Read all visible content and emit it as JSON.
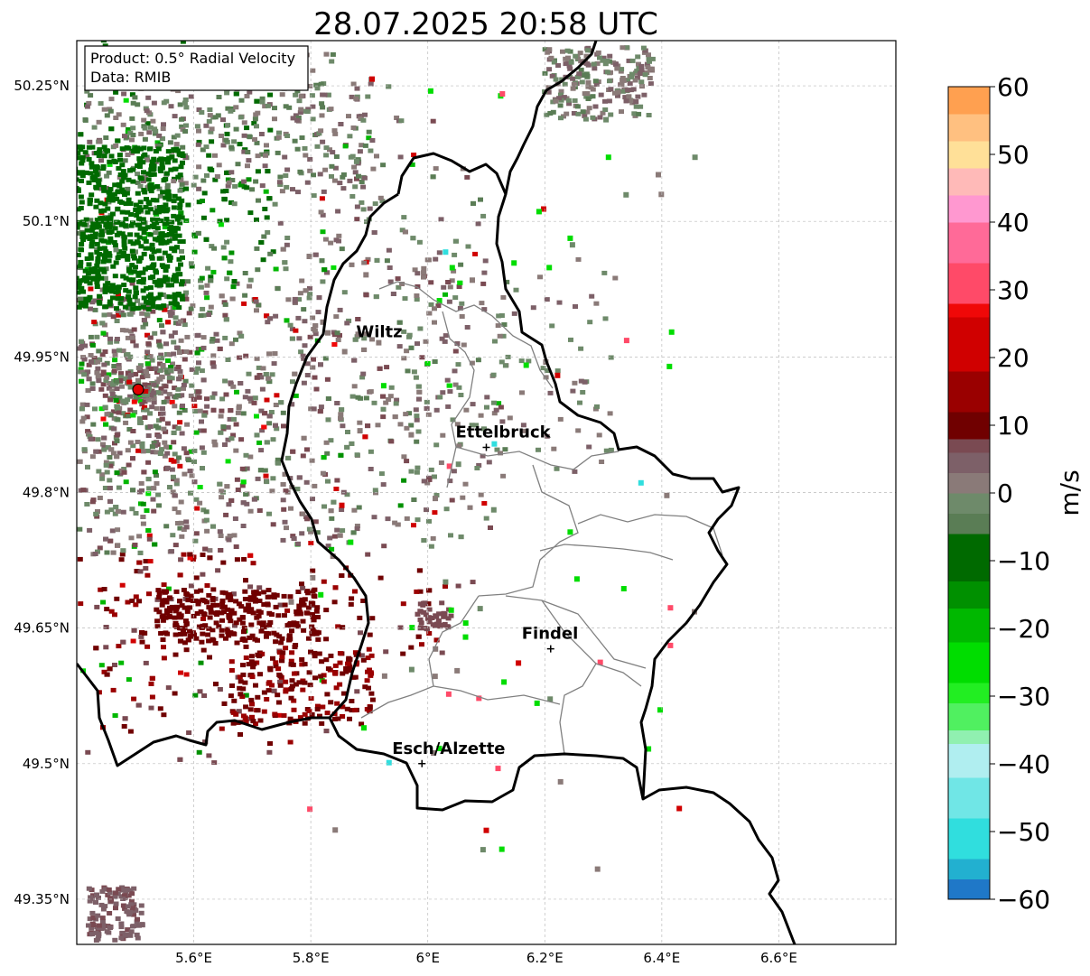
{
  "title": "28.07.2025 20:58 UTC",
  "info": {
    "product": "Product: 0.5° Radial Velocity",
    "data": "Data: RMIB"
  },
  "map_extent": {
    "lon": [
      5.4,
      6.8
    ],
    "lat": [
      49.3,
      50.3
    ]
  },
  "gridlines": true,
  "x_ticks": [
    {
      "value": 5.6,
      "label": "5.6°E"
    },
    {
      "value": 5.8,
      "label": "5.8°E"
    },
    {
      "value": 6.0,
      "label": "6°E"
    },
    {
      "value": 6.2,
      "label": "6.2°E"
    },
    {
      "value": 6.4,
      "label": "6.4°E"
    },
    {
      "value": 6.6,
      "label": "6.6°E"
    }
  ],
  "y_ticks": [
    {
      "value": 49.35,
      "label": "49.35°N"
    },
    {
      "value": 49.5,
      "label": "49.5°N"
    },
    {
      "value": 49.65,
      "label": "49.65°N"
    },
    {
      "value": 49.8,
      "label": "49.8°N"
    },
    {
      "value": 49.95,
      "label": "49.95°N"
    },
    {
      "value": 50.1,
      "label": "50.1°N"
    },
    {
      "value": 50.25,
      "label": "50.25°N"
    }
  ],
  "radar_site": {
    "lon": 5.505,
    "lat": 49.914,
    "color": "#e00000"
  },
  "cities": [
    {
      "name": "Wiltz",
      "lon": 5.93,
      "lat": 49.966,
      "marker": false
    },
    {
      "name": "Ettelbruck",
      "lon": 6.1,
      "lat": 49.85,
      "marker": true
    },
    {
      "name": "Findel",
      "lon": 6.21,
      "lat": 49.627,
      "marker": true
    },
    {
      "name": "Esch/Alzette",
      "lon": 5.99,
      "lat": 49.5,
      "marker": true
    }
  ],
  "colorbar": {
    "label": "m/s",
    "min": -60,
    "max": 60,
    "ticks": [
      {
        "value": 60,
        "label": "60"
      },
      {
        "value": 50,
        "label": "50"
      },
      {
        "value": 40,
        "label": "40"
      },
      {
        "value": 30,
        "label": "30"
      },
      {
        "value": 20,
        "label": "20"
      },
      {
        "value": 10,
        "label": "10"
      },
      {
        "value": 0,
        "label": "0"
      },
      {
        "value": -10,
        "label": "−10"
      },
      {
        "value": -20,
        "label": "−20"
      },
      {
        "value": -30,
        "label": "−30"
      },
      {
        "value": -40,
        "label": "−40"
      },
      {
        "value": -50,
        "label": "−50"
      },
      {
        "value": -60,
        "label": "−60"
      }
    ],
    "stops": [
      {
        "from": -60,
        "to": -57,
        "color": "#1f78c8"
      },
      {
        "from": -57,
        "to": -54,
        "color": "#22b0d0"
      },
      {
        "from": -54,
        "to": -48,
        "color": "#30dede"
      },
      {
        "from": -48,
        "to": -42,
        "color": "#70e6e6"
      },
      {
        "from": -42,
        "to": -37,
        "color": "#b0eef0"
      },
      {
        "from": -37,
        "to": -35,
        "color": "#90f0b0"
      },
      {
        "from": -35,
        "to": -31,
        "color": "#50f060"
      },
      {
        "from": -31,
        "to": -28,
        "color": "#22ee22"
      },
      {
        "from": -28,
        "to": -22,
        "color": "#00dd00"
      },
      {
        "from": -22,
        "to": -17,
        "color": "#00b800"
      },
      {
        "from": -17,
        "to": -13,
        "color": "#009000"
      },
      {
        "from": -13,
        "to": -6,
        "color": "#006a00"
      },
      {
        "from": -6,
        "to": -3,
        "color": "#5a7d55"
      },
      {
        "from": -3,
        "to": 0,
        "color": "#6e8a6a"
      },
      {
        "from": 0,
        "to": 3,
        "color": "#8a7a78"
      },
      {
        "from": 3,
        "to": 6,
        "color": "#7d6068"
      },
      {
        "from": 6,
        "to": 8,
        "color": "#7a4a52"
      },
      {
        "from": 8,
        "to": 12,
        "color": "#700000"
      },
      {
        "from": 12,
        "to": 18,
        "color": "#9a0000"
      },
      {
        "from": 18,
        "to": 26,
        "color": "#d00000"
      },
      {
        "from": 26,
        "to": 28,
        "color": "#f00808"
      },
      {
        "from": 28,
        "to": 34,
        "color": "#ff4a68"
      },
      {
        "from": 34,
        "to": 40,
        "color": "#ff6a98"
      },
      {
        "from": 40,
        "to": 44,
        "color": "#ff98d0"
      },
      {
        "from": 44,
        "to": 48,
        "color": "#ffbab8"
      },
      {
        "from": 48,
        "to": 52,
        "color": "#ffe098"
      },
      {
        "from": 52,
        "to": 56,
        "color": "#ffc080"
      },
      {
        "from": 56,
        "to": 60,
        "color": "#ffa050"
      }
    ]
  }
}
